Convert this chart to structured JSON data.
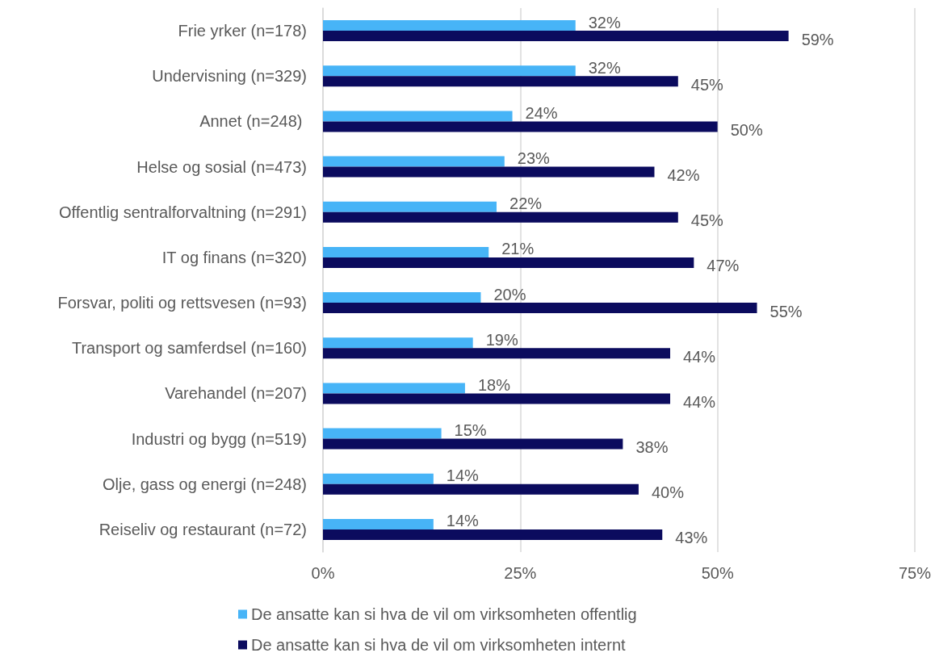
{
  "chart_data": {
    "type": "bar",
    "orientation": "horizontal",
    "categories": [
      "Frie yrker (n=178)",
      "Undervisning (n=329)",
      "Annet (n=248) ",
      "Helse og sosial (n=473)",
      "Offentlig sentralforvaltning (n=291)",
      "IT og finans (n=320)",
      "Forsvar, politi og rettsvesen (n=93)",
      "Transport og samferdsel (n=160)",
      "Varehandel (n=207)",
      "Industri og bygg (n=519)",
      "Olje, gass og energi (n=248)",
      "Reiseliv og restaurant (n=72)"
    ],
    "series": [
      {
        "name": "De ansatte kan si hva de vil om virksomheten offentlig",
        "color": "#47b4f7",
        "values": [
          32,
          32,
          24,
          23,
          22,
          21,
          20,
          19,
          18,
          15,
          14,
          14
        ],
        "value_labels": [
          "32%",
          "32%",
          "24%",
          "23%",
          "22%",
          "21%",
          "20%",
          "19%",
          "18%",
          "15%",
          "14%",
          "14%"
        ]
      },
      {
        "name": "De ansatte kan si hva de vil om virksomheten internt",
        "color": "#0b0b5e",
        "values": [
          59,
          45,
          50,
          42,
          45,
          47,
          55,
          44,
          44,
          38,
          40,
          43
        ],
        "value_labels": [
          "59%",
          "45%",
          "50%",
          "42%",
          "45%",
          "47%",
          "55%",
          "44%",
          "44%",
          "38%",
          "40%",
          "43%"
        ]
      }
    ],
    "xlim": [
      0,
      75
    ],
    "xticks": [
      {
        "value": 0,
        "label": "0%"
      },
      {
        "value": 25,
        "label": "25%"
      },
      {
        "value": 50,
        "label": "50%"
      },
      {
        "value": 75,
        "label": "75%"
      }
    ],
    "grid": "x",
    "legend": "bottom"
  }
}
